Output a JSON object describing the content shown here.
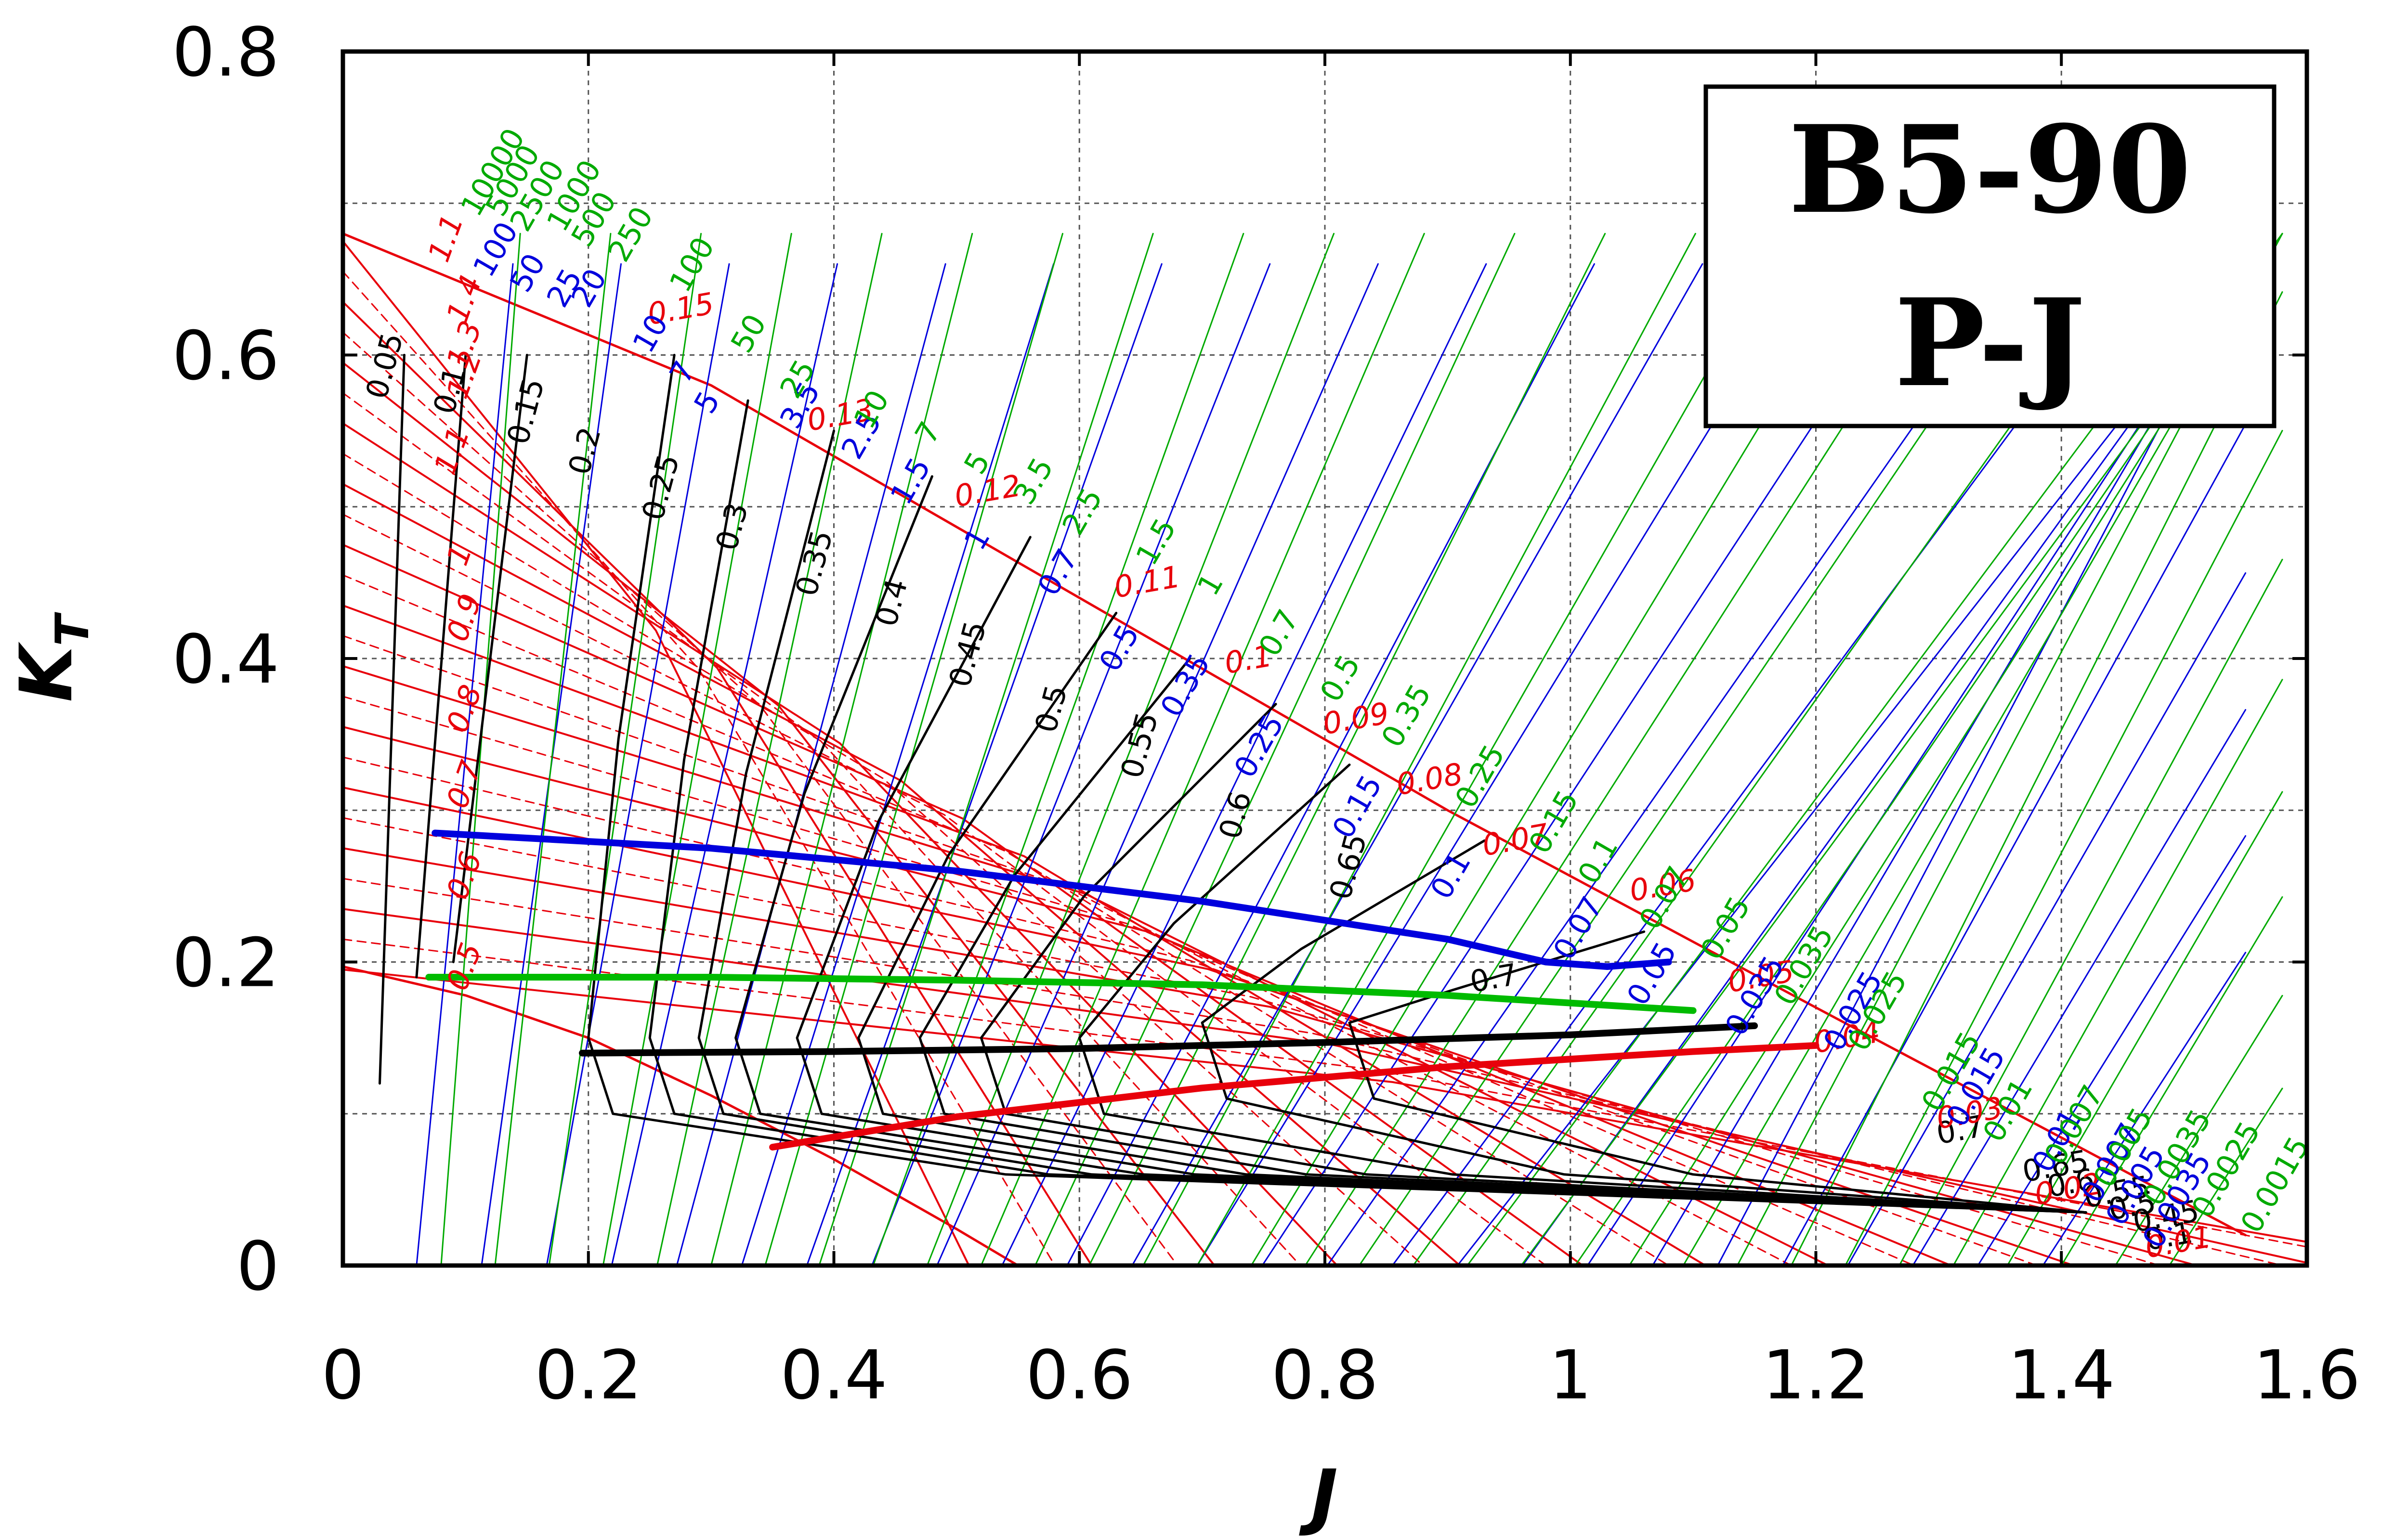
{
  "chart_data": {
    "type": "line",
    "title_box": [
      "B5-90",
      "P-J"
    ],
    "xlabel": "J",
    "ylabel": "K",
    "ylabel_sub": "T",
    "xlim": [
      0,
      1.6
    ],
    "ylim": [
      0,
      0.8
    ],
    "x_ticks": [
      "0",
      "0.2",
      "0.4",
      "0.6",
      "0.8",
      "1",
      "1.2",
      "1.4",
      "1.6"
    ],
    "y_ticks": [
      "0",
      "0.2",
      "0.4",
      "0.6",
      "0.8"
    ],
    "grid": true,
    "colors": {
      "efficiency": "#000000",
      "pitch_solid": "#e8000b",
      "pitch_dashed": "#e8000b",
      "bp_coeff_blue": "#0000dd",
      "bp_coeff_green": "#00aa00",
      "design_blue": "#0000dd",
      "design_green": "#00bb00",
      "design_black": "#000000",
      "design_red": "#e8000b"
    },
    "efficiency_labels": [
      "0.05",
      "0.1",
      "0.15",
      "0.2",
      "0.25",
      "0.3",
      "0.35",
      "0.4",
      "0.45",
      "0.5",
      "0.55",
      "0.6",
      "0.65",
      "0.7",
      "0.7",
      "0.65",
      "0.6",
      "0.55",
      "0.5",
      "0.45",
      "0.1"
    ],
    "red_labels": [
      "1.1",
      "1.4",
      "1.3",
      "1.2",
      "1.1",
      "1",
      "0.9",
      "0.8",
      "0.7",
      "0.6",
      "0.5",
      "0.15",
      "0.13",
      "0.12",
      "0.11",
      "0.1",
      "0.09",
      "0.08",
      "0.07",
      "0.06",
      "0.05",
      "0.04",
      "0.03",
      "0.02",
      "0.01"
    ],
    "blue_labels": [
      "100",
      "50",
      "25",
      "20",
      "10",
      "7",
      "5",
      "3.5",
      "2.5",
      "1.5",
      "1",
      "0.7",
      "0.5",
      "0.35",
      "0.25",
      "0.15",
      "0.1",
      "0.07",
      "0.05",
      "0.035",
      "0.025",
      "0.015",
      "0.01",
      "0.007",
      "0.005",
      "0.0035"
    ],
    "green_labels": [
      "10000",
      "5000",
      "2500",
      "1000",
      "500",
      "250",
      "100",
      "50",
      "25",
      "10",
      "7",
      "5",
      "3.5",
      "2.5",
      "1.5",
      "1",
      "0.7",
      "0.5",
      "0.35",
      "0.25",
      "0.15",
      "0.1",
      "0.07",
      "0.05",
      "0.035",
      "0.025",
      "0.015",
      "0.01",
      "0.007",
      "0.005",
      "0.0035",
      "0.0025",
      "0.0015"
    ],
    "design_lines": [
      {
        "color": "blue",
        "x": [
          0.075,
          0.3,
          0.5,
          0.7,
          0.9,
          0.98,
          1.03,
          1.08
        ],
        "y": [
          0.285,
          0.275,
          0.26,
          0.24,
          0.215,
          0.2,
          0.197,
          0.2
        ]
      },
      {
        "color": "green",
        "x": [
          0.07,
          0.3,
          0.5,
          0.7,
          0.9,
          1.1
        ],
        "y": [
          0.19,
          0.19,
          0.188,
          0.185,
          0.178,
          0.168
        ]
      },
      {
        "color": "black",
        "x": [
          0.195,
          0.4,
          0.6,
          0.8,
          1.0,
          1.15
        ],
        "y": [
          0.14,
          0.141,
          0.143,
          0.147,
          0.152,
          0.158
        ]
      },
      {
        "color": "red",
        "x": [
          0.35,
          0.5,
          0.7,
          0.9,
          1.1,
          1.2
        ],
        "y": [
          0.078,
          0.098,
          0.117,
          0.131,
          0.141,
          0.145
        ]
      }
    ]
  }
}
